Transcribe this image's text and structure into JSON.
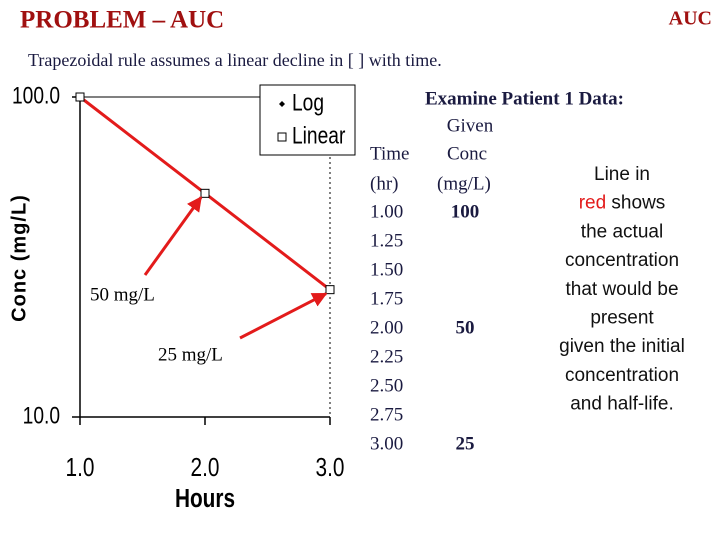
{
  "slide": {
    "title": "PROBLEM – AUC",
    "corner": "AUC",
    "subtitle": "Trapezoidal rule assumes a linear decline in [ ] with time.",
    "table": {
      "caption": "Examine Patient 1 Data:",
      "group_header": "Given",
      "headers": [
        "Time",
        "Conc"
      ],
      "units": [
        "(hr)",
        "(mg/L)"
      ],
      "rows": [
        {
          "time": "1.00",
          "conc": "100"
        },
        {
          "time": "1.25"
        },
        {
          "time": "1.50"
        },
        {
          "time": "1.75"
        },
        {
          "time": "2.00",
          "conc": "50"
        },
        {
          "time": "2.25"
        },
        {
          "time": "2.50"
        },
        {
          "time": "2.75"
        },
        {
          "time": "3.00",
          "conc": "25"
        }
      ]
    },
    "note": {
      "lines": [
        "Line in",
        {
          "highlight": "red",
          "rest": " shows"
        },
        "the actual",
        "concentration",
        "that would be",
        "present",
        "given the initial",
        "concentration",
        "and half-life."
      ]
    }
  },
  "chart_data": {
    "type": "line",
    "y_label": "Conc (mg/L)",
    "x_label": "Hours",
    "x": [
      1,
      2,
      3
    ],
    "series": [
      {
        "color": "#e31b1b",
        "values": [
          100,
          50,
          25
        ]
      }
    ],
    "legend": [
      {
        "label": "Log",
        "marker": "diamond"
      },
      {
        "label": "Linear",
        "marker": "square"
      }
    ],
    "log_y": true,
    "ylim": [
      10,
      100
    ],
    "yticks": [
      {
        "value": 100,
        "label": "100.0"
      },
      {
        "value": 10,
        "label": "10.0"
      }
    ],
    "xlim": [
      1,
      3
    ],
    "xticks": [
      {
        "value": 1,
        "label": "1.0"
      },
      {
        "value": 2,
        "label": "2.0"
      },
      {
        "value": 3,
        "label": "3.0"
      }
    ],
    "annotations": [
      {
        "text": "50 mg/L",
        "point": 1
      },
      {
        "text": "25 mg/L",
        "point": 2
      }
    ]
  }
}
